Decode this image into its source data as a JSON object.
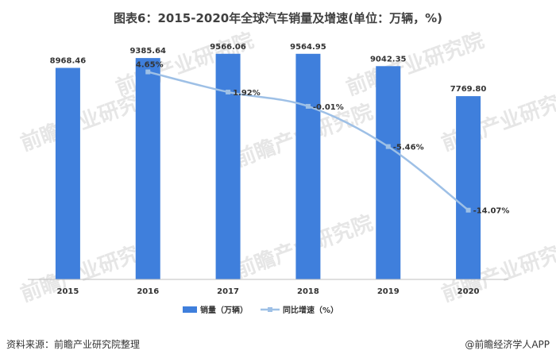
{
  "chart_data": {
    "type": "bar",
    "title": "图表6：2015-2020年全球汽车销量及增速(单位：万辆，%)",
    "categories": [
      "2015",
      "2016",
      "2017",
      "2018",
      "2019",
      "2020"
    ],
    "series": [
      {
        "name": "销量（万辆）",
        "type": "bar",
        "color": "#3f7fdc",
        "values": [
          8968.46,
          9385.64,
          9566.06,
          9564.95,
          9042.35,
          7769.8
        ],
        "labels": [
          "8968.46",
          "9385.64",
          "9566.06",
          "9564.95",
          "9042.35",
          "7769.80"
        ]
      },
      {
        "name": "同比增速（%）",
        "type": "line",
        "color": "#9ec0e6",
        "x": [
          "2016",
          "2017",
          "2018",
          "2019",
          "2020"
        ],
        "values": [
          4.65,
          1.92,
          -0.01,
          -5.46,
          -14.07
        ],
        "labels": [
          "4.65%",
          "1.92%",
          "-0.01%",
          "-5.46%",
          "-14.07%"
        ]
      }
    ],
    "ylim_bar": [
      0,
      10500
    ],
    "ylim_line": [
      -17,
      6
    ],
    "legend": "bottom",
    "grid": false
  },
  "watermark": "前瞻产业研究院",
  "footer": {
    "source": "资料来源：前瞻产业研究院整理",
    "brand": "@前瞻经济学人APP"
  }
}
